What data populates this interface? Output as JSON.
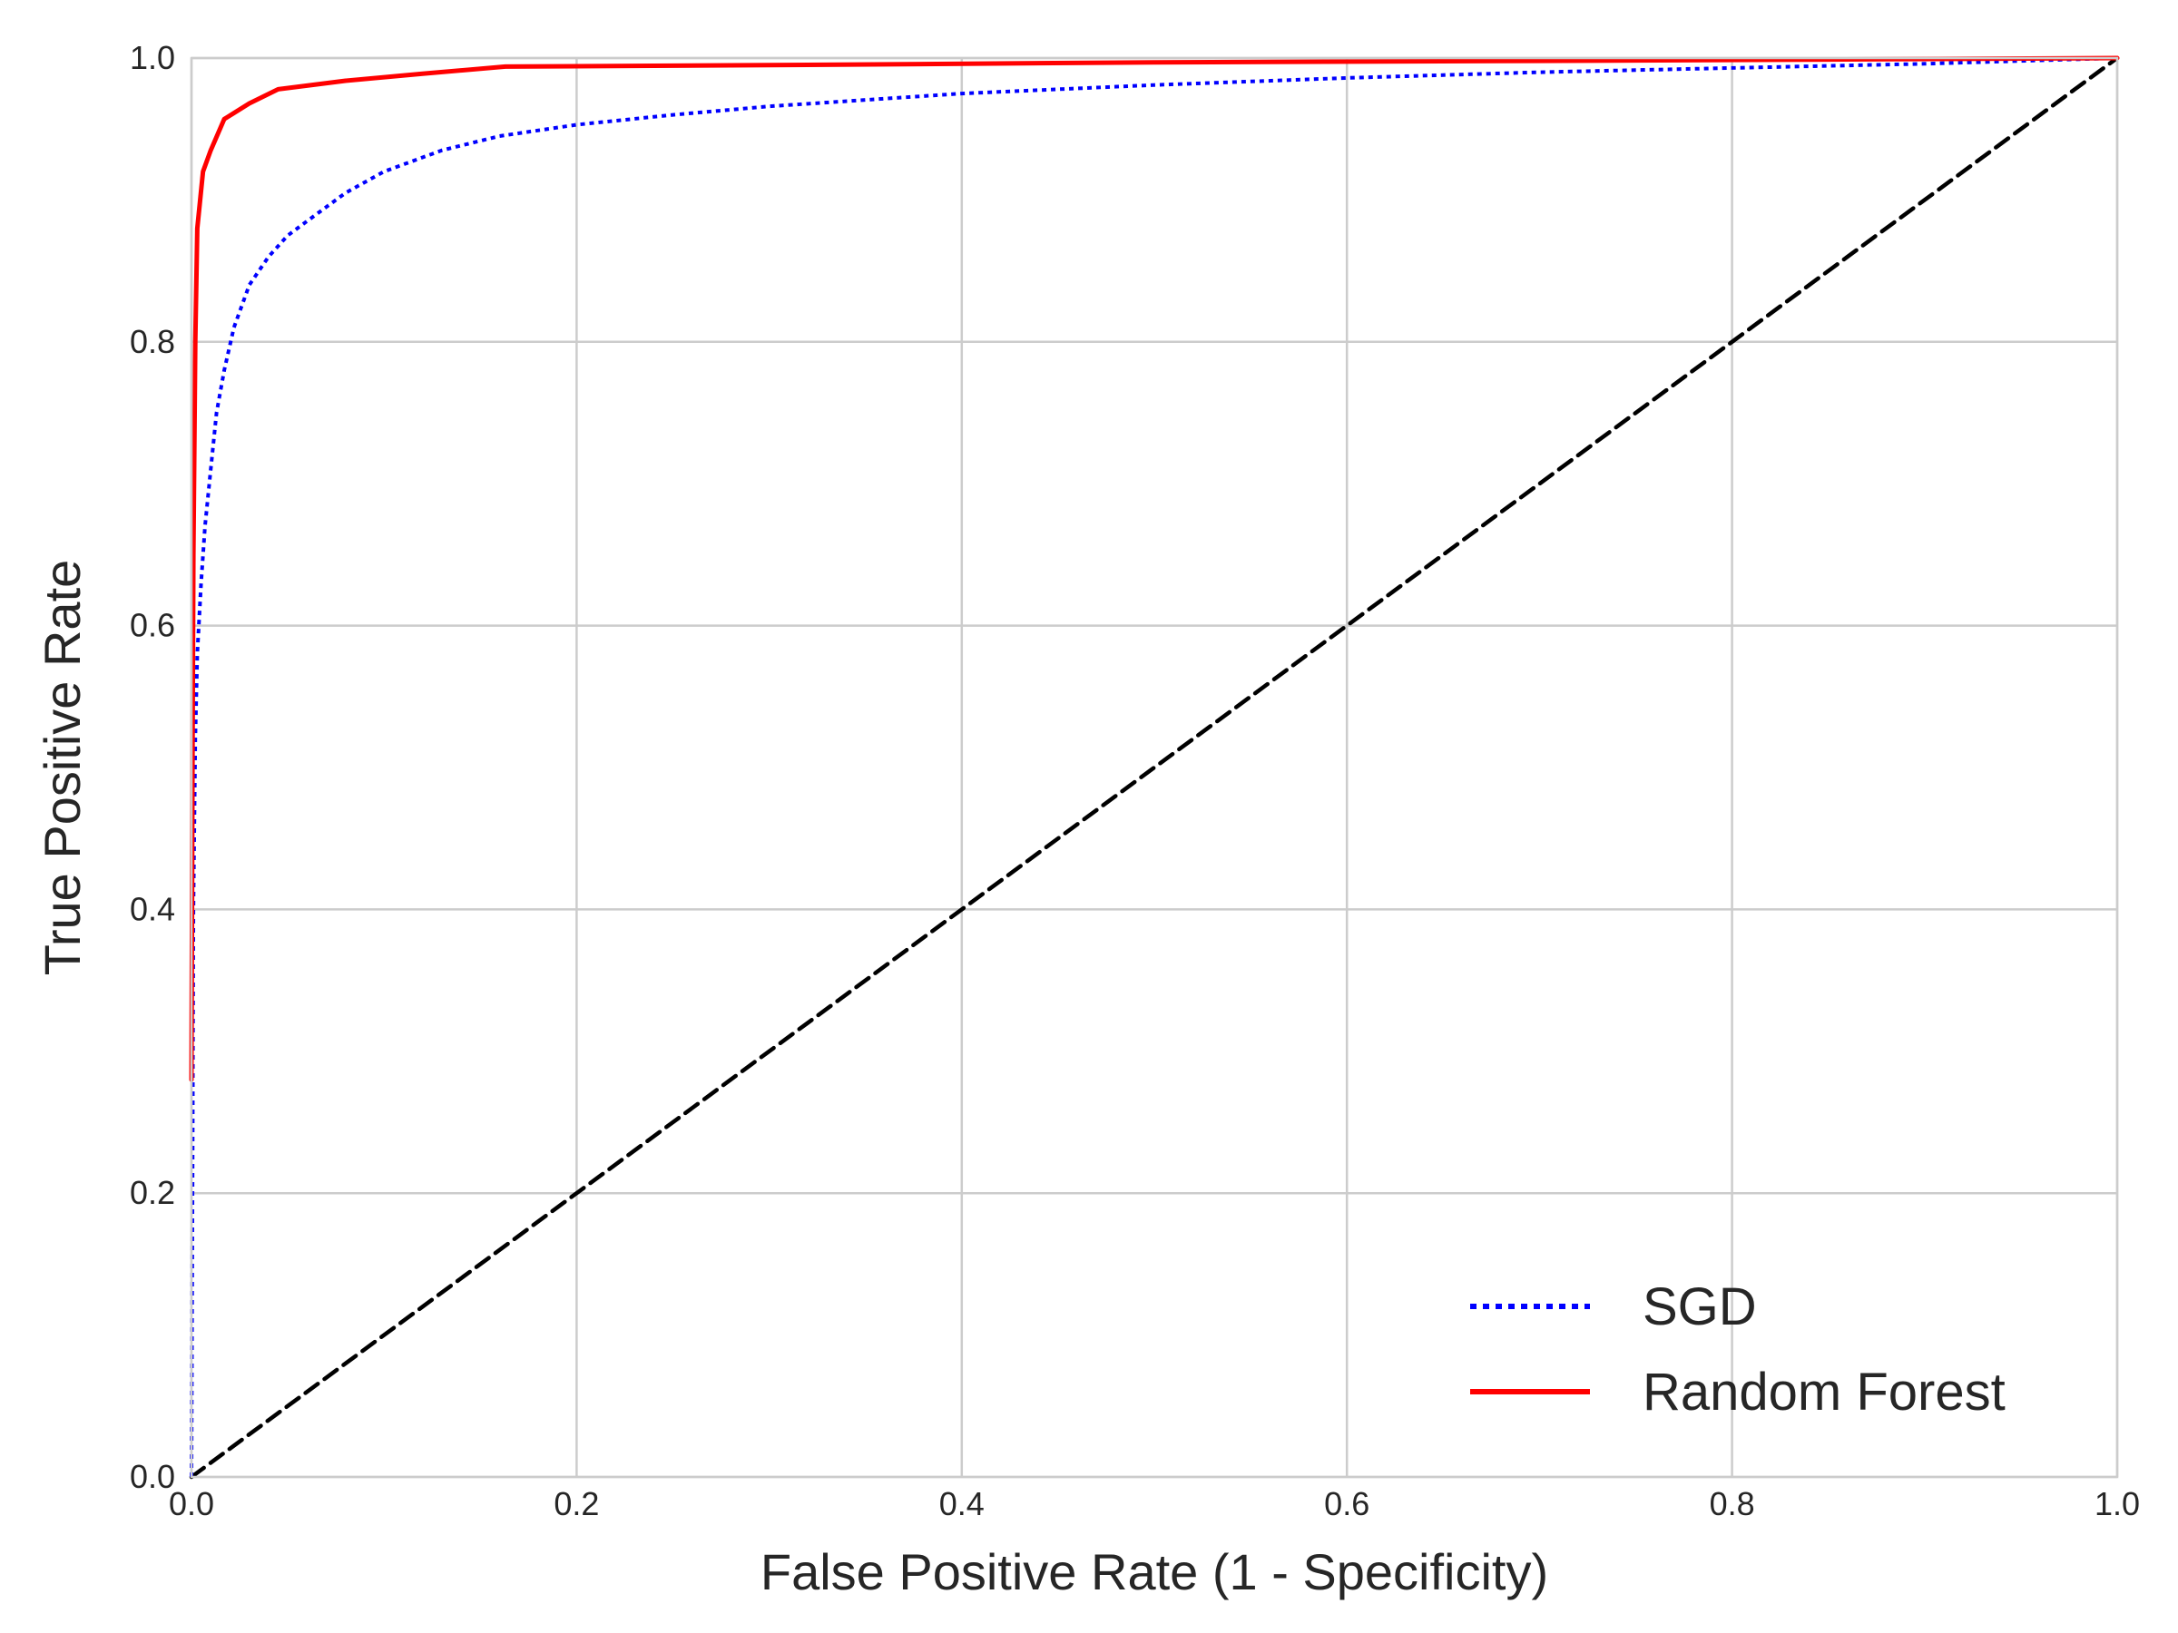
{
  "chart_data": {
    "type": "line",
    "title": "",
    "xlabel": "False Positive Rate (1 - Specificity)",
    "ylabel": "True Positive Rate",
    "xlim": [
      0.0,
      1.0
    ],
    "ylim": [
      0.0,
      1.0
    ],
    "xticks": [
      "0.0",
      "0.2",
      "0.4",
      "0.6",
      "0.8",
      "1.0"
    ],
    "yticks": [
      "0.0",
      "0.2",
      "0.4",
      "0.6",
      "0.8",
      "1.0"
    ],
    "grid": true,
    "legend_position": "lower-right",
    "series": [
      {
        "name": "SGD",
        "color": "#0000ff",
        "style": "dotted",
        "x": [
          0.0,
          0.0005,
          0.001,
          0.002,
          0.003,
          0.005,
          0.007,
          0.01,
          0.013,
          0.017,
          0.022,
          0.03,
          0.04,
          0.05,
          0.065,
          0.08,
          0.1,
          0.13,
          0.16,
          0.2,
          0.25,
          0.3,
          0.4,
          0.5,
          0.6,
          0.7,
          0.8,
          0.9,
          1.0
        ],
        "y": [
          0.0,
          0.2,
          0.4,
          0.52,
          0.58,
          0.63,
          0.67,
          0.71,
          0.75,
          0.78,
          0.81,
          0.84,
          0.86,
          0.875,
          0.89,
          0.905,
          0.92,
          0.935,
          0.945,
          0.953,
          0.96,
          0.966,
          0.975,
          0.981,
          0.986,
          0.99,
          0.993,
          0.996,
          1.0
        ]
      },
      {
        "name": "Random Forest",
        "color": "#ff0000",
        "style": "solid",
        "x": [
          0.0,
          0.0005,
          0.001,
          0.002,
          0.003,
          0.006,
          0.01,
          0.017,
          0.03,
          0.045,
          0.08,
          0.12,
          0.163,
          0.3,
          0.5,
          0.7,
          0.85,
          1.0
        ],
        "y": [
          0.28,
          0.5,
          0.65,
          0.8,
          0.88,
          0.92,
          0.935,
          0.957,
          0.968,
          0.978,
          0.984,
          0.989,
          0.994,
          0.995,
          0.997,
          0.998,
          0.999,
          1.0
        ]
      },
      {
        "name": "",
        "color": "#000000",
        "style": "dashed",
        "x": [
          0.0,
          1.0
        ],
        "y": [
          0.0,
          1.0
        ]
      }
    ]
  }
}
